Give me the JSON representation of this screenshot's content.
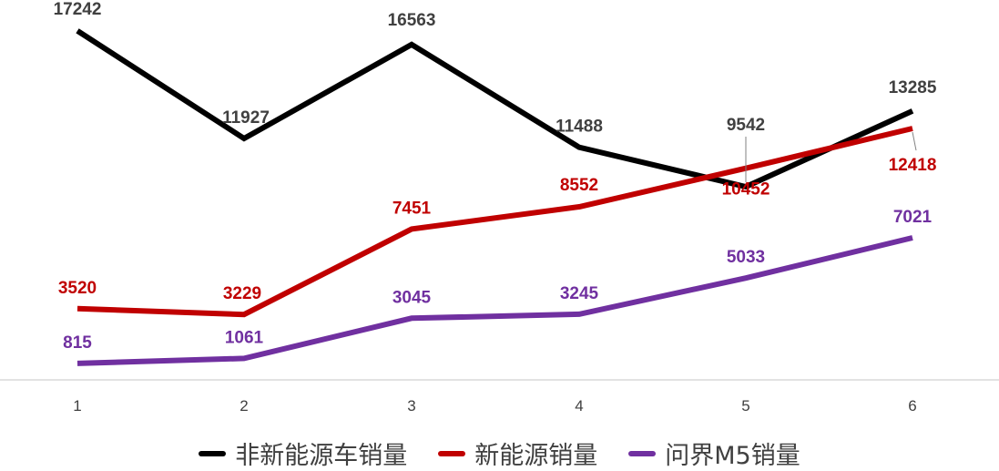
{
  "chart_data": {
    "type": "line",
    "title": "",
    "xlabel": "",
    "ylabel": "",
    "categories": [
      "1",
      "2",
      "3",
      "4",
      "5",
      "6"
    ],
    "ylim": [
      0,
      18000
    ],
    "grid": false,
    "legend_position": "bottom",
    "series": [
      {
        "name": "非新能源车销量",
        "color": "#000000",
        "values": [
          17242,
          11927,
          16563,
          11488,
          9542,
          13285
        ]
      },
      {
        "name": "新能源销量",
        "color": "#c00000",
        "values": [
          3520,
          3229,
          7451,
          8552,
          10452,
          12418
        ]
      },
      {
        "name": "问界M5销量",
        "color": "#7030a0",
        "values": [
          815,
          1061,
          3045,
          3245,
          5033,
          7021
        ]
      }
    ]
  }
}
